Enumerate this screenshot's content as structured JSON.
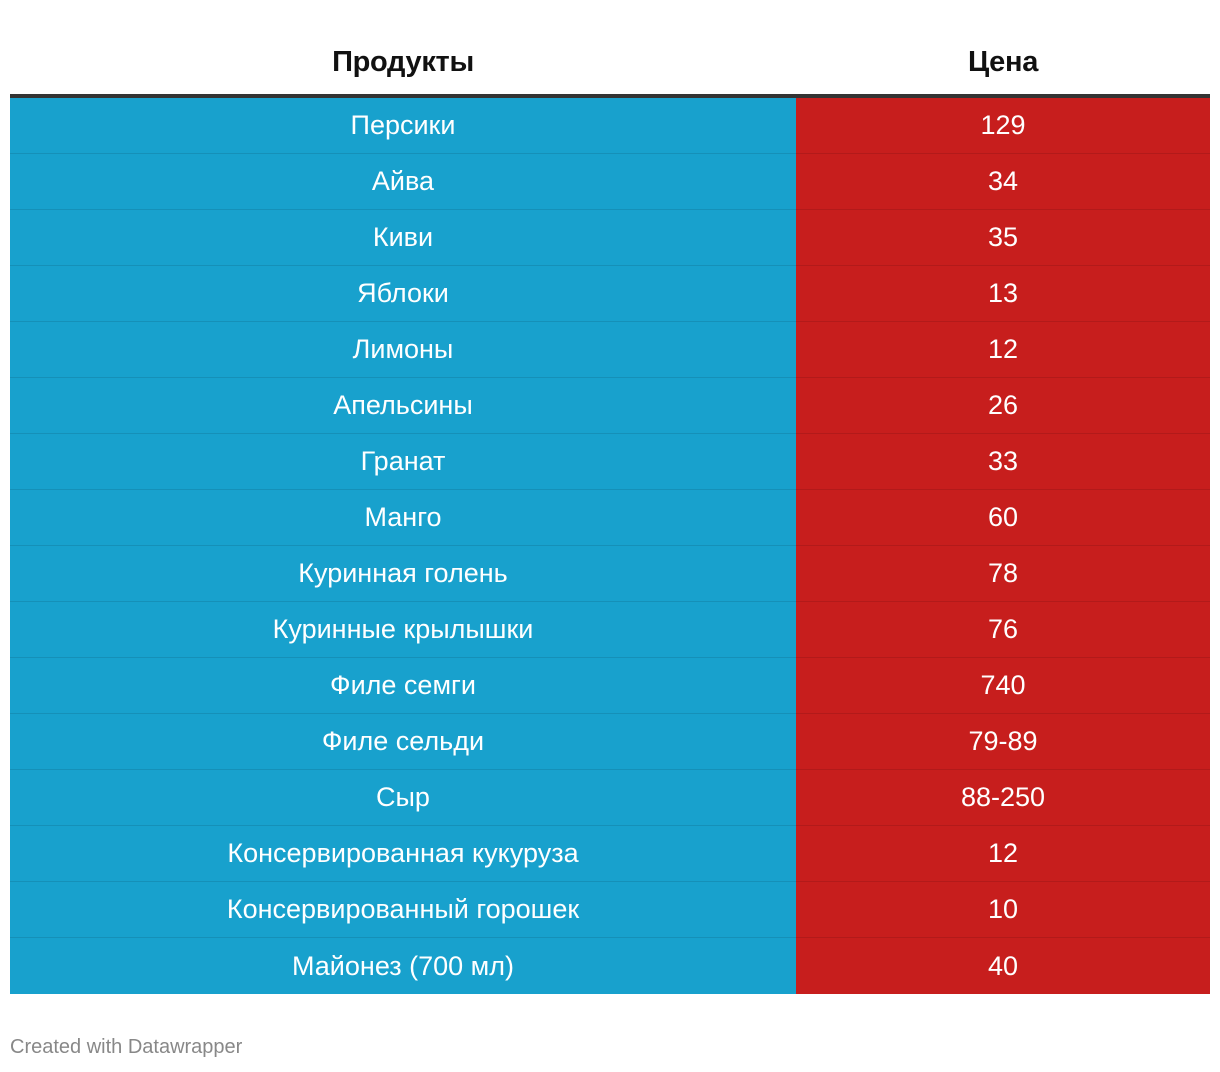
{
  "colors": {
    "product_bg": "#18a1cd",
    "price_bg": "#c71e1d",
    "header_rule": "#333333"
  },
  "table": {
    "headers": [
      "Продукты",
      "Цена"
    ],
    "rows": [
      {
        "product": "Персики",
        "price": "129"
      },
      {
        "product": "Айва",
        "price": "34"
      },
      {
        "product": "Киви",
        "price": "35"
      },
      {
        "product": "Яблоки",
        "price": "13"
      },
      {
        "product": "Лимоны",
        "price": "12"
      },
      {
        "product": "Апельсины",
        "price": "26"
      },
      {
        "product": "Гранат",
        "price": "33"
      },
      {
        "product": "Манго",
        "price": "60"
      },
      {
        "product": "Куринная голень",
        "price": "78"
      },
      {
        "product": "Куринные крылышки",
        "price": "76"
      },
      {
        "product": "Филе семги",
        "price": "740"
      },
      {
        "product": "Филе сельди",
        "price": "79-89"
      },
      {
        "product": "Сыр",
        "price": "88-250"
      },
      {
        "product": "Консервированная кукуруза",
        "price": "12"
      },
      {
        "product": "Консервированный горошек",
        "price": "10"
      },
      {
        "product": "Майонез (700 мл)",
        "price": "40"
      }
    ]
  },
  "chart_data": {
    "type": "table",
    "columns": [
      "Продукты",
      "Цена"
    ],
    "rows": [
      [
        "Персики",
        "129"
      ],
      [
        "Айва",
        "34"
      ],
      [
        "Киви",
        "35"
      ],
      [
        "Яблоки",
        "13"
      ],
      [
        "Лимоны",
        "12"
      ],
      [
        "Апельсины",
        "26"
      ],
      [
        "Гранат",
        "33"
      ],
      [
        "Манго",
        "60"
      ],
      [
        "Куринная голень",
        "78"
      ],
      [
        "Куринные крылышки",
        "76"
      ],
      [
        "Филе семги",
        "740"
      ],
      [
        "Филе сельди",
        "79-89"
      ],
      [
        "Сыр",
        "88-250"
      ],
      [
        "Консервированная кукуруза",
        "12"
      ],
      [
        "Консервированный горошек",
        "10"
      ],
      [
        "Майонез (700 мл)",
        "40"
      ]
    ]
  },
  "footer": {
    "credit": "Created with Datawrapper"
  }
}
